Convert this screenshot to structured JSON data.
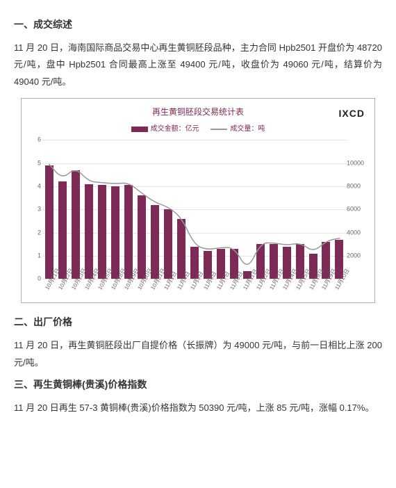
{
  "section1": {
    "title": "一、成交综述",
    "text": "11 月 20 日，海南国际商品交易中心再生黄铜胚段品种，主力合同 Hpb2501 开盘价为 48720 元/吨，盘中 Hpb2501 合同最高上涨至 49400 元/吨，收盘价为 49060 元/吨，结算价为 49040 元/吨。"
  },
  "chart": {
    "title": "再生黄铜胚段交易统计表",
    "logo": "IXCD",
    "legend_bar": "成交金额：亿元",
    "legend_line": "成交量：吨",
    "bar_color": "#7d2a57",
    "line_color": "#999999",
    "grid_color": "#e5e5e5",
    "background": "#ffffff",
    "border_color": "#b0b0b0",
    "y_left": {
      "min": 0,
      "max": 6,
      "ticks": [
        0,
        1,
        2,
        3,
        4,
        5,
        6
      ]
    },
    "y_right": {
      "min": 0,
      "max": 12000,
      "ticks": [
        2000,
        4000,
        6000,
        8000,
        10000
      ]
    },
    "categories": [
      "10月21日",
      "10月22日",
      "10月23日",
      "10月24日",
      "10月25日",
      "10月28日",
      "10月29日",
      "10月30日",
      "10月31日",
      "11月1日",
      "11月4日",
      "11月5日",
      "11月6日",
      "11月7日",
      "11月8日",
      "11月11日",
      "11月12日",
      "11月13日",
      "11月14日",
      "11月15日",
      "11月18日",
      "11月19日",
      "11月20日"
    ],
    "bar_values": [
      4.9,
      4.2,
      4.7,
      4.1,
      4.05,
      4.0,
      4.05,
      3.6,
      3.2,
      3.0,
      2.6,
      1.4,
      1.2,
      1.3,
      1.3,
      0.35,
      1.5,
      1.5,
      1.4,
      1.5,
      1.1,
      1.6,
      1.7
    ],
    "line_values": [
      9900,
      8600,
      9600,
      8400,
      8300,
      8200,
      8300,
      7400,
      6600,
      6200,
      5300,
      2900,
      2500,
      2700,
      2700,
      700,
      3100,
      3100,
      2900,
      3100,
      2300,
      3300,
      3500
    ]
  },
  "section2": {
    "title": "二、出厂价格",
    "text": "11 月 20 日，再生黄铜胚段出厂自提价格（长振牌）为 49000 元/吨，与前一日相比上涨 200 元/吨。"
  },
  "section3": {
    "title": "三、再生黄铜棒(贵溪)价格指数",
    "text": "11 月 20 日再生 57-3 黄铜棒(贵溪)价格指数为 50390 元/吨，上涨 85 元/吨，涨幅 0.17%。"
  }
}
